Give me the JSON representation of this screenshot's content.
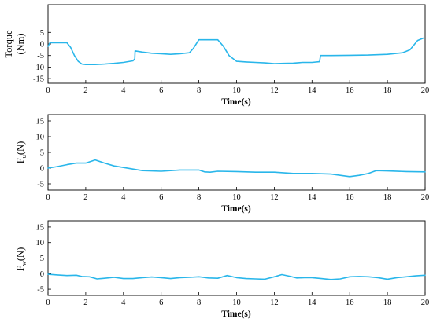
{
  "chart_data": [
    {
      "type": "line",
      "ylabel_line1": "Torque",
      "ylabel_line2": "(Nm)",
      "xlabel": "Time(s)",
      "xlim": [
        0,
        20
      ],
      "ylim": [
        -17,
        17
      ],
      "xticks": [
        "0",
        "2",
        "4",
        "6",
        "8",
        "10",
        "12",
        "14",
        "16",
        "18",
        "20"
      ],
      "yticks": [
        "5",
        "0",
        "-5",
        "-10",
        "-15"
      ],
      "grid": false,
      "line_color": "#29b6ea",
      "series": [
        {
          "x": [
            0,
            0.1,
            0.3,
            1.0,
            1.2,
            1.4,
            1.6,
            1.8,
            2.0,
            2.5,
            3.0,
            3.5,
            4.0,
            4.5,
            4.6,
            4.62,
            5.0,
            5.5,
            6.0,
            6.5,
            7.0,
            7.5,
            7.7,
            8.0,
            8.5,
            9.0,
            9.3,
            9.6,
            10.0,
            10.5,
            11.0,
            11.5,
            12.0,
            12.5,
            13.0,
            13.5,
            14.0,
            14.4,
            14.45,
            15.0,
            16.0,
            17.0,
            18.0,
            18.8,
            19.2,
            19.6,
            19.9
          ],
          "y": [
            -1.0,
            0.5,
            0.5,
            0.5,
            -1.5,
            -5,
            -7.5,
            -8.7,
            -8.9,
            -8.9,
            -8.7,
            -8.4,
            -8.0,
            -7.3,
            -6.5,
            -3.0,
            -3.5,
            -4.0,
            -4.2,
            -4.5,
            -4.2,
            -3.8,
            -2.0,
            1.8,
            1.8,
            1.8,
            -1.0,
            -5.0,
            -7.5,
            -7.8,
            -8.0,
            -8.2,
            -8.5,
            -8.4,
            -8.3,
            -8.0,
            -8.0,
            -7.7,
            -5.0,
            -5.0,
            -4.9,
            -4.8,
            -4.5,
            -3.8,
            -2.5,
            1.5,
            2.5
          ]
        }
      ]
    },
    {
      "type": "line",
      "ylabel_main": "F",
      "ylabel_sub": "u",
      "ylabel_unit": "(N)",
      "xlabel": "Time(s)",
      "xlim": [
        0,
        20
      ],
      "ylim": [
        -7,
        17
      ],
      "xticks": [
        "0",
        "2",
        "4",
        "6",
        "8",
        "10",
        "12",
        "14",
        "16",
        "18",
        "20"
      ],
      "yticks": [
        "15",
        "10",
        "5",
        "0",
        "-5"
      ],
      "grid": false,
      "line_color": "#29b6ea",
      "series": [
        {
          "x": [
            0,
            0.5,
            1.0,
            1.5,
            2.0,
            2.5,
            3.0,
            3.5,
            4.0,
            5.0,
            6.0,
            7.0,
            8.0,
            8.3,
            8.6,
            9.0,
            10.0,
            11.0,
            12.0,
            13.0,
            14.0,
            15.0,
            16.0,
            16.5,
            17.0,
            17.4,
            18.0,
            19.0,
            20.0
          ],
          "y": [
            0.0,
            0.5,
            1.1,
            1.6,
            1.6,
            2.6,
            1.6,
            0.7,
            0.2,
            -0.8,
            -1.0,
            -0.6,
            -0.6,
            -1.2,
            -1.3,
            -1.0,
            -1.1,
            -1.3,
            -1.3,
            -1.7,
            -1.7,
            -1.9,
            -2.7,
            -2.3,
            -1.7,
            -0.8,
            -0.9,
            -1.1,
            -1.2
          ]
        }
      ]
    },
    {
      "type": "line",
      "ylabel_main": "F",
      "ylabel_sub": "w",
      "ylabel_unit": "(N)",
      "xlabel": "Time(s)",
      "xlim": [
        0,
        20
      ],
      "ylim": [
        -7,
        17
      ],
      "xticks": [
        "0",
        "2",
        "4",
        "6",
        "8",
        "10",
        "12",
        "14",
        "16",
        "18",
        "20"
      ],
      "yticks": [
        "15",
        "10",
        "5",
        "0",
        "-5"
      ],
      "grid": false,
      "line_color": "#29b6ea",
      "series": [
        {
          "x": [
            0,
            0.5,
            1.0,
            1.5,
            1.8,
            2.2,
            2.6,
            3.0,
            3.5,
            4.0,
            4.5,
            5.0,
            5.5,
            6.0,
            6.5,
            7.0,
            7.5,
            8.0,
            8.5,
            9.0,
            9.5,
            10.0,
            10.5,
            11.0,
            11.5,
            12.0,
            12.4,
            12.8,
            13.2,
            13.6,
            14.0,
            14.5,
            15.0,
            15.5,
            16.0,
            16.5,
            17.0,
            17.5,
            18.0,
            18.5,
            19.0,
            19.5,
            20.0
          ],
          "y": [
            -0.2,
            -0.4,
            -0.6,
            -0.5,
            -0.9,
            -1.0,
            -1.7,
            -1.5,
            -1.2,
            -1.6,
            -1.6,
            -1.3,
            -1.1,
            -1.3,
            -1.6,
            -1.3,
            -1.2,
            -1.0,
            -1.4,
            -1.5,
            -0.6,
            -1.3,
            -1.6,
            -1.7,
            -1.8,
            -1.0,
            -0.3,
            -0.8,
            -1.4,
            -1.3,
            -1.3,
            -1.6,
            -1.9,
            -1.7,
            -1.0,
            -0.9,
            -1.0,
            -1.3,
            -1.8,
            -1.3,
            -1.0,
            -0.7,
            -0.5
          ]
        }
      ]
    }
  ]
}
